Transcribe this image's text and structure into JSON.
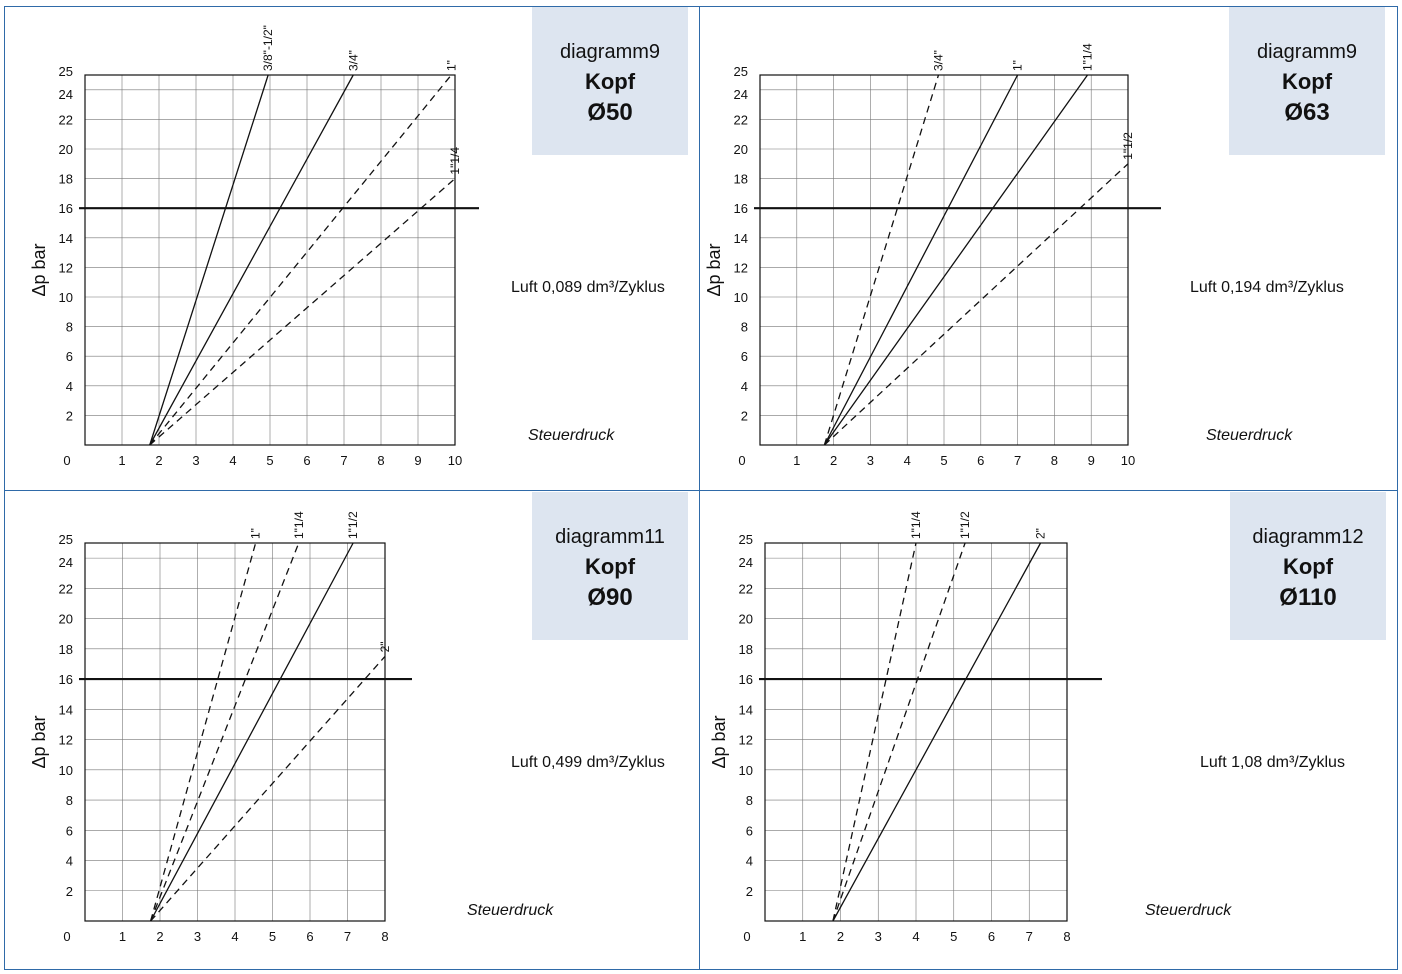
{
  "chart_data": [
    {
      "type": "line",
      "title": "diagramm9",
      "subtitle": "Kopf",
      "diameter": "Ø50",
      "info": "Luft 0,089 dm³/Zyklus",
      "xlabel": "Steuerdruck",
      "ylabel": "Δp bar",
      "xlim": [
        0,
        10
      ],
      "ylim": [
        0,
        25
      ],
      "xticks": [
        "0",
        "1",
        "2",
        "3",
        "4",
        "5",
        "6",
        "7",
        "8",
        "9",
        "10"
      ],
      "yticks": [
        "2",
        "4",
        "6",
        "8",
        "10",
        "12",
        "14",
        "16",
        "18",
        "20",
        "22",
        "24",
        "25"
      ],
      "grid": true,
      "reference_line": 16,
      "series": [
        {
          "name": "3/8\"-1/2\"",
          "style": "solid",
          "x": [
            1.75,
            4.95
          ],
          "y": [
            0,
            25
          ]
        },
        {
          "name": "3/4\"",
          "style": "solid",
          "x": [
            1.75,
            7.25
          ],
          "y": [
            0,
            25
          ]
        },
        {
          "name": "1\"",
          "style": "dashed",
          "x": [
            1.75,
            9.9
          ],
          "y": [
            0,
            25
          ]
        },
        {
          "name": "1\"1/4",
          "style": "dashed",
          "x": [
            1.75,
            10.0
          ],
          "y": [
            0,
            18
          ]
        }
      ]
    },
    {
      "type": "line",
      "title": "diagramm9",
      "subtitle": "Kopf",
      "diameter": "Ø63",
      "info": "Luft 0,194 dm³/Zyklus",
      "xlabel": "Steuerdruck",
      "ylabel": "Δp bar",
      "xlim": [
        0,
        10
      ],
      "ylim": [
        0,
        25
      ],
      "xticks": [
        "0",
        "1",
        "2",
        "3",
        "4",
        "5",
        "6",
        "7",
        "8",
        "9",
        "10"
      ],
      "yticks": [
        "2",
        "4",
        "6",
        "8",
        "10",
        "12",
        "14",
        "16",
        "18",
        "20",
        "22",
        "24",
        "25"
      ],
      "grid": true,
      "reference_line": 16,
      "series": [
        {
          "name": "3/4\"",
          "style": "dashed",
          "x": [
            1.75,
            4.85
          ],
          "y": [
            0,
            25
          ]
        },
        {
          "name": "1\"",
          "style": "solid",
          "x": [
            1.75,
            7.0
          ],
          "y": [
            0,
            25
          ]
        },
        {
          "name": "1\"1/4",
          "style": "solid",
          "x": [
            1.75,
            8.9
          ],
          "y": [
            0,
            25
          ]
        },
        {
          "name": "1\"1/2",
          "style": "dashed",
          "x": [
            1.75,
            10.0
          ],
          "y": [
            0,
            19
          ]
        }
      ]
    },
    {
      "type": "line",
      "title": "diagramm11",
      "subtitle": "Kopf",
      "diameter": "Ø90",
      "info": "Luft 0,499 dm³/Zyklus",
      "xlabel": "Steuerdruck",
      "ylabel": "Δp bar",
      "xlim": [
        0,
        8
      ],
      "ylim": [
        0,
        25
      ],
      "xticks": [
        "0",
        "1",
        "2",
        "3",
        "4",
        "5",
        "6",
        "7",
        "8"
      ],
      "yticks": [
        "2",
        "4",
        "6",
        "8",
        "10",
        "12",
        "14",
        "16",
        "18",
        "20",
        "22",
        "24",
        "25"
      ],
      "grid": true,
      "reference_line": 16,
      "series": [
        {
          "name": "1\"",
          "style": "dashed",
          "x": [
            1.75,
            4.55
          ],
          "y": [
            0,
            25
          ]
        },
        {
          "name": "1\"1/4",
          "style": "dashed",
          "x": [
            1.75,
            5.7
          ],
          "y": [
            0,
            25
          ]
        },
        {
          "name": "1\"1/2",
          "style": "solid",
          "x": [
            1.75,
            7.15
          ],
          "y": [
            0,
            25
          ]
        },
        {
          "name": "2\"",
          "style": "dashed",
          "x": [
            1.75,
            8.0
          ],
          "y": [
            0,
            17.5
          ]
        }
      ]
    },
    {
      "type": "line",
      "title": "diagramm12",
      "subtitle": "Kopf",
      "diameter": "Ø110",
      "info": "Luft 1,08 dm³/Zyklus",
      "xlabel": "Steuerdruck",
      "ylabel": "Δp bar",
      "xlim": [
        0,
        8
      ],
      "ylim": [
        0,
        25
      ],
      "xticks": [
        "0",
        "1",
        "2",
        "3",
        "4",
        "5",
        "6",
        "7",
        "8"
      ],
      "yticks": [
        "2",
        "4",
        "6",
        "8",
        "10",
        "12",
        "14",
        "16",
        "18",
        "20",
        "22",
        "24",
        "25"
      ],
      "grid": true,
      "reference_line": 16,
      "series": [
        {
          "name": "1\"1/4",
          "style": "dashed",
          "x": [
            1.8,
            4.0
          ],
          "y": [
            0,
            25
          ]
        },
        {
          "name": "1\"1/2",
          "style": "dashed",
          "x": [
            1.8,
            5.3
          ],
          "y": [
            0,
            25
          ]
        },
        {
          "name": "2\"",
          "style": "solid",
          "x": [
            1.8,
            7.3
          ],
          "y": [
            0,
            25
          ]
        }
      ]
    }
  ]
}
